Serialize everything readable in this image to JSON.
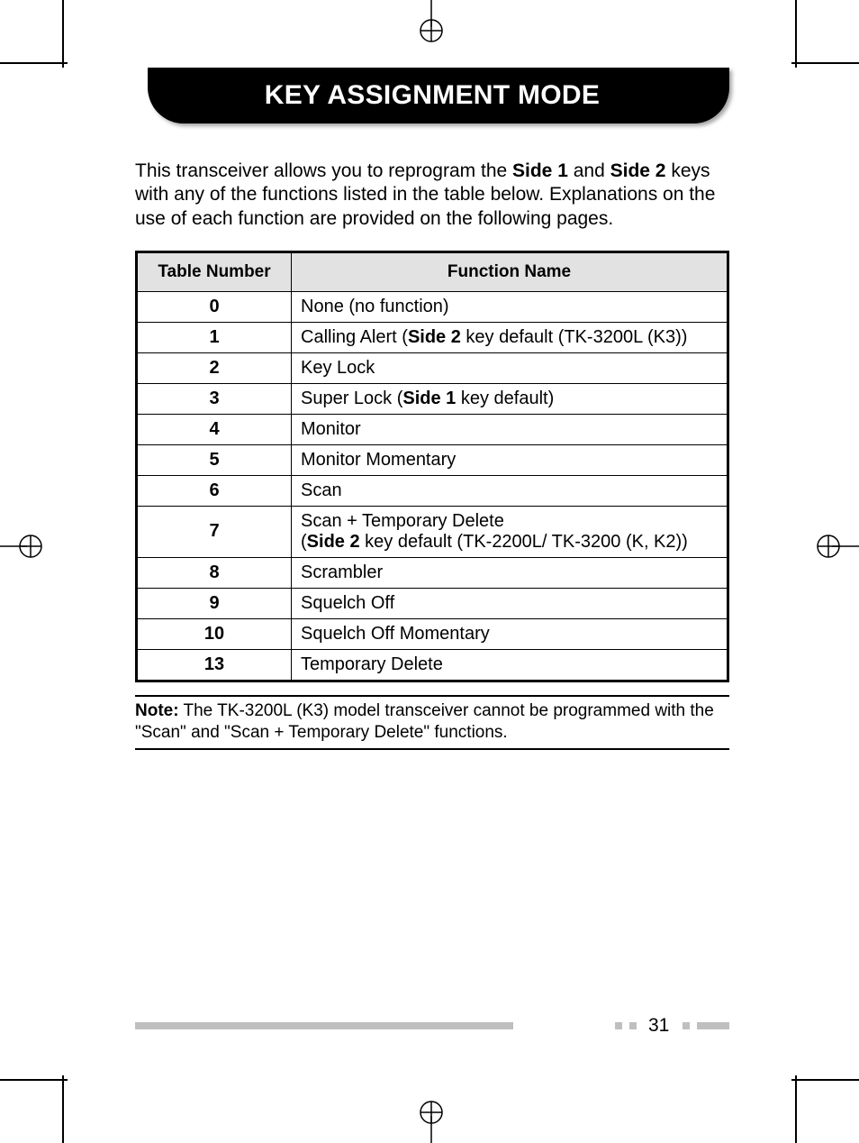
{
  "title": "KEY ASSIGNMENT MODE",
  "intro": {
    "part1": "This transceiver allows you to reprogram the ",
    "bold1": "Side 1",
    "part2": " and ",
    "bold2": "Side 2",
    "part3": " keys with any of the functions listed in the table below. Explanations on the use of each function are provided on the following pages."
  },
  "table": {
    "header_num": "Table Number",
    "header_func": "Function Name",
    "rows": [
      {
        "num": "0",
        "name_pre": "None (no function)",
        "bold": "",
        "name_post": ""
      },
      {
        "num": "1",
        "name_pre": "Calling Alert (",
        "bold": "Side 2",
        "name_post": " key default (TK-3200L (K3))"
      },
      {
        "num": "2",
        "name_pre": "Key Lock",
        "bold": "",
        "name_post": ""
      },
      {
        "num": "3",
        "name_pre": "Super Lock (",
        "bold": "Side 1",
        "name_post": " key default)"
      },
      {
        "num": "4",
        "name_pre": "Monitor",
        "bold": "",
        "name_post": ""
      },
      {
        "num": "5",
        "name_pre": "Monitor Momentary",
        "bold": "",
        "name_post": ""
      },
      {
        "num": "6",
        "name_pre": "Scan",
        "bold": "",
        "name_post": ""
      },
      {
        "num": "7",
        "name_pre": "Scan + Temporary Delete\n(",
        "bold": "Side 2",
        "name_post": " key default (TK-2200L/ TK-3200 (K, K2))"
      },
      {
        "num": "8",
        "name_pre": "Scrambler",
        "bold": "",
        "name_post": ""
      },
      {
        "num": "9",
        "name_pre": "Squelch Off",
        "bold": "",
        "name_post": ""
      },
      {
        "num": "10",
        "name_pre": "Squelch Off Momentary",
        "bold": "",
        "name_post": ""
      },
      {
        "num": "13",
        "name_pre": "Temporary Delete",
        "bold": "",
        "name_post": ""
      }
    ]
  },
  "note": {
    "label": "Note:",
    "text": "  The TK-3200L (K3) model transceiver cannot be programmed with the \"Scan\" and \"Scan + Temporary Delete\" functions."
  },
  "page_number": "31"
}
